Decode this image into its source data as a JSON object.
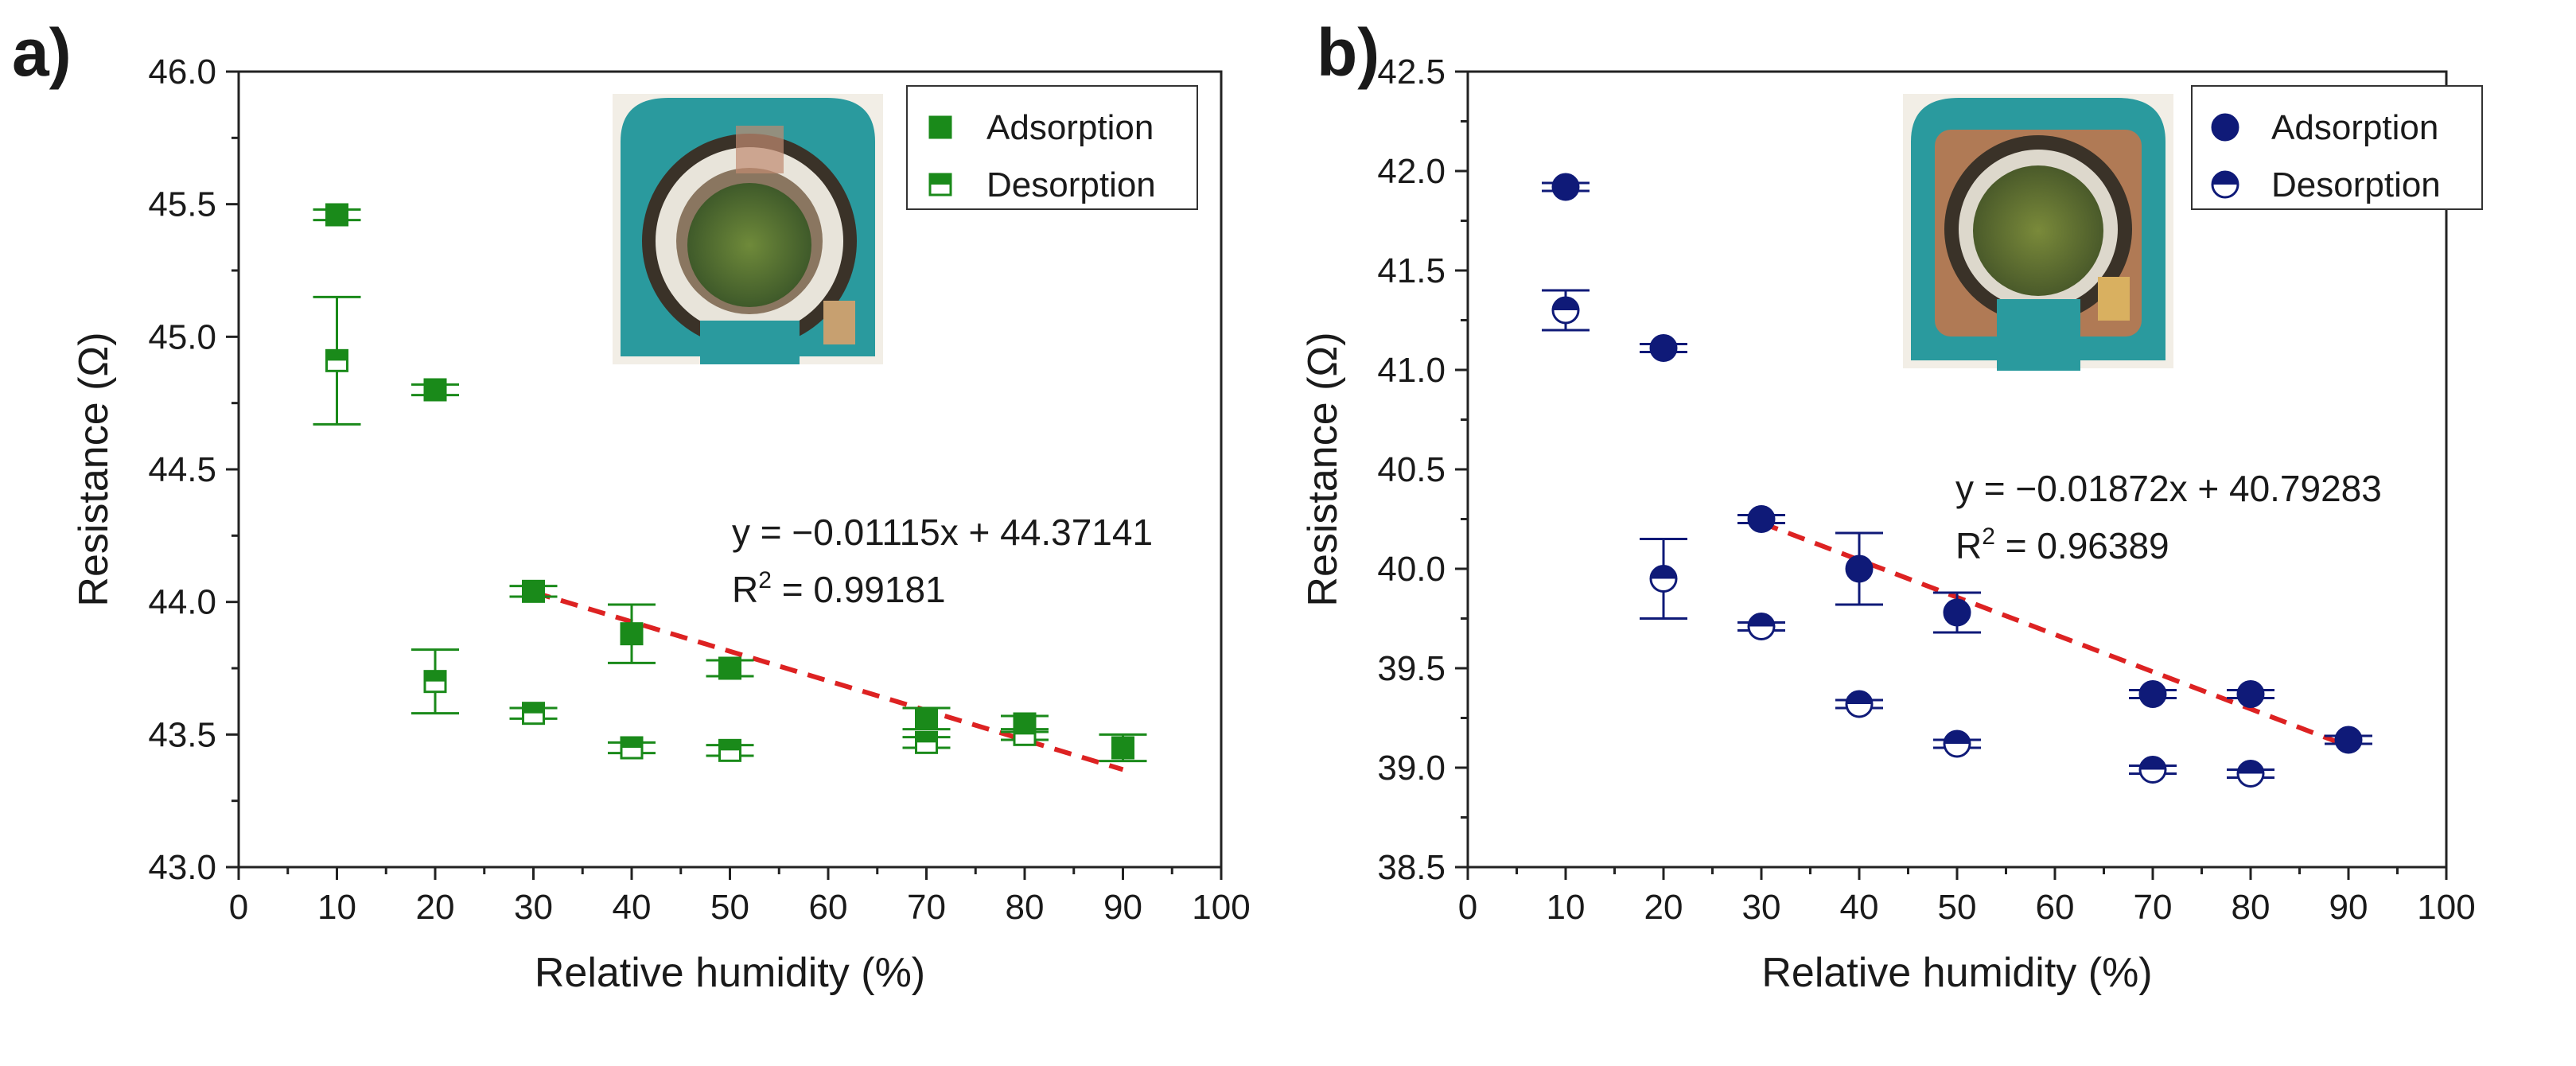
{
  "chart_data": [
    {
      "type": "scatter",
      "panel_label": "a)",
      "xlabel": "Relative humidity (%)",
      "ylabel": "Resistance (Ω)",
      "xlim": [
        0,
        100
      ],
      "ylim": [
        43.0,
        46.0
      ],
      "xticks": [
        0,
        10,
        20,
        30,
        40,
        50,
        60,
        70,
        80,
        90,
        100
      ],
      "yticks": [
        43.0,
        43.5,
        44.0,
        44.5,
        45.0,
        45.5,
        46.0
      ],
      "color": "#1a8a1a",
      "marker": "square",
      "legend_position": "top-right",
      "series": [
        {
          "name": "Adsorption",
          "x": [
            10,
            20,
            30,
            40,
            50,
            70,
            80,
            90
          ],
          "y": [
            45.46,
            44.8,
            44.04,
            43.88,
            43.75,
            43.56,
            43.54,
            43.45
          ],
          "err": [
            0.02,
            0.02,
            0.02,
            0.11,
            0.03,
            0.04,
            0.03,
            0.05
          ]
        },
        {
          "name": "Desorption",
          "x": [
            10,
            20,
            30,
            40,
            50,
            70,
            80
          ],
          "y": [
            44.91,
            43.7,
            43.58,
            43.45,
            43.44,
            43.47,
            43.5
          ],
          "err": [
            0.24,
            0.12,
            0.02,
            0.02,
            0.02,
            0.02,
            0.02
          ]
        }
      ],
      "fit": {
        "slope": -0.01115,
        "intercept": 44.37141,
        "x_range": [
          30,
          90
        ],
        "color": "#dd2222"
      },
      "annotations": [
        "y = −0.01115x + 44.37141",
        "R",
        "2",
        " = 0.99181"
      ]
    },
    {
      "type": "scatter",
      "panel_label": "b)",
      "xlabel": "Relative humidity (%)",
      "ylabel": "Resistance (Ω)",
      "xlim": [
        0,
        100
      ],
      "ylim": [
        38.5,
        42.5
      ],
      "xticks": [
        0,
        10,
        20,
        30,
        40,
        50,
        60,
        70,
        80,
        90,
        100
      ],
      "yticks": [
        38.5,
        39.0,
        39.5,
        40.0,
        40.5,
        41.0,
        41.5,
        42.0,
        42.5
      ],
      "color": "#0f1a78",
      "marker": "circle",
      "legend_position": "top-right",
      "series": [
        {
          "name": "Adsorption",
          "x": [
            10,
            20,
            30,
            40,
            50,
            70,
            80,
            90
          ],
          "y": [
            41.92,
            41.11,
            40.25,
            40.0,
            39.78,
            39.37,
            39.37,
            39.14
          ],
          "err": [
            0.02,
            0.02,
            0.02,
            0.18,
            0.1,
            0.02,
            0.02,
            0.02
          ]
        },
        {
          "name": "Desorption",
          "x": [
            10,
            20,
            30,
            40,
            50,
            70,
            80
          ],
          "y": [
            41.3,
            39.95,
            39.71,
            39.32,
            39.12,
            38.99,
            38.97
          ],
          "err": [
            0.1,
            0.2,
            0.02,
            0.02,
            0.02,
            0.02,
            0.02
          ]
        }
      ],
      "fit": {
        "slope": -0.01872,
        "intercept": 40.79283,
        "x_range": [
          30,
          90
        ],
        "color": "#dd2222"
      },
      "annotations": [
        "y = −0.01872x + 40.79283",
        "R",
        "2",
        " = 0.96389"
      ]
    }
  ],
  "insets": [
    {
      "description_name": "sensor-photo-a",
      "board_color": "#2a9a9e"
    },
    {
      "description_name": "sensor-photo-b",
      "board_color": "#2a9a9e"
    }
  ]
}
